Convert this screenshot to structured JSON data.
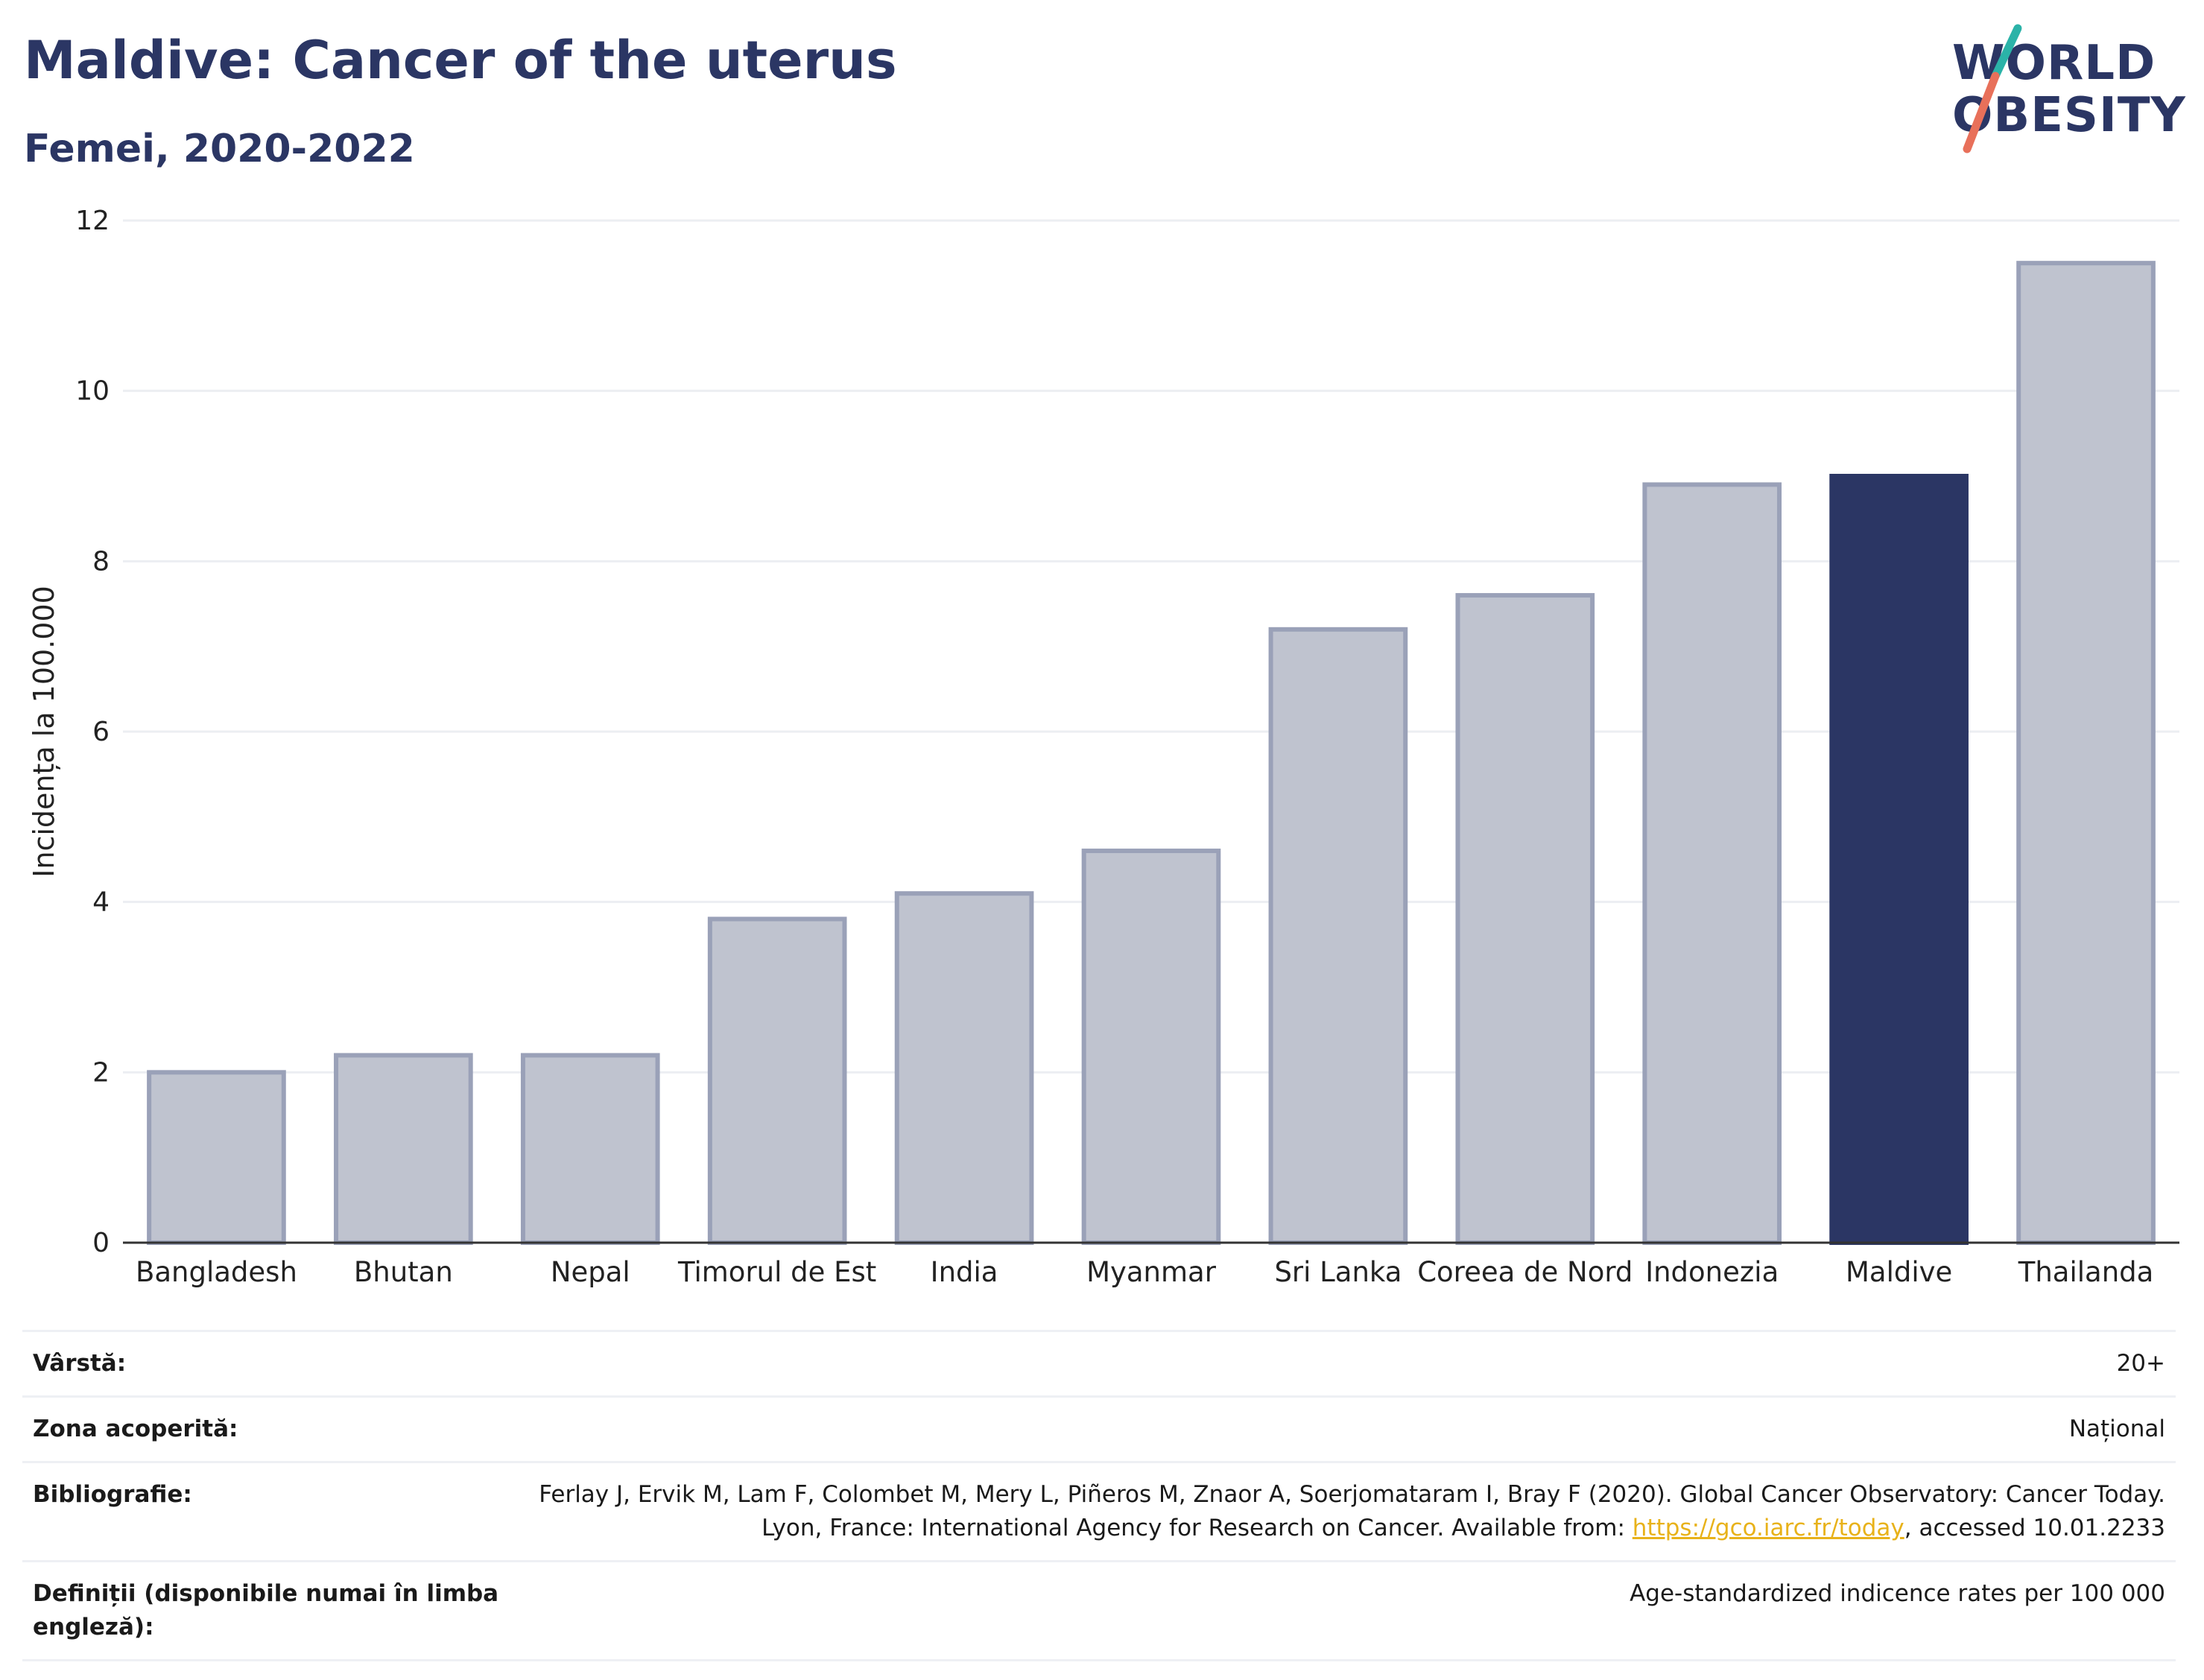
{
  "header": {
    "title": "Maldive: Cancer of the uterus",
    "subtitle": "Femei, 2020-2022"
  },
  "logo": {
    "line1": "WORLD",
    "line2": "OBESITY",
    "colors": {
      "text": "#2b3664",
      "slash_top": "#2bb3a8",
      "slash_bottom": "#e8705a"
    }
  },
  "chart_data": {
    "type": "bar",
    "categories": [
      "Bangladesh",
      "Bhutan",
      "Nepal",
      "Timorul de Est",
      "India",
      "Myanmar",
      "Sri Lanka",
      "Coreea de Nord",
      "Indonezia",
      "Maldive",
      "Thailanda"
    ],
    "values": [
      2.0,
      2.2,
      2.2,
      3.8,
      4.1,
      4.6,
      7.2,
      7.6,
      8.9,
      9.0,
      11.5
    ],
    "highlight": "Maldive",
    "ylabel": "Incidența la 100.000",
    "xlabel": "",
    "ylim": [
      0,
      12
    ],
    "yticks": [
      0,
      2,
      4,
      6,
      8,
      10,
      12
    ],
    "grid": true,
    "colors": {
      "bar": "#bfc3cf",
      "bar_edge": "#9aa1b8",
      "highlight": "#2b3664",
      "grid": "#eceef2"
    }
  },
  "meta": {
    "rows": [
      {
        "key": "Vârstă:",
        "value": "20+"
      },
      {
        "key": "Zona acoperită:",
        "value": "Național"
      },
      {
        "key": "Bibliografie:",
        "value_before": "Ferlay J, Ervik M, Lam F, Colombet M, Mery L, Piñeros M, Znaor A, Soerjomataram I, Bray F (2020). Global Cancer Observatory: Cancer Today. Lyon, France: International Agency for Research on Cancer. Available from: ",
        "link": "https://gco.iarc.fr/today",
        "value_after": ", accessed 10.01.2233"
      },
      {
        "key": "Definiții (disponibile numai în limba engleză):",
        "value": "Age-standardized indicence rates per 100 000"
      }
    ]
  }
}
